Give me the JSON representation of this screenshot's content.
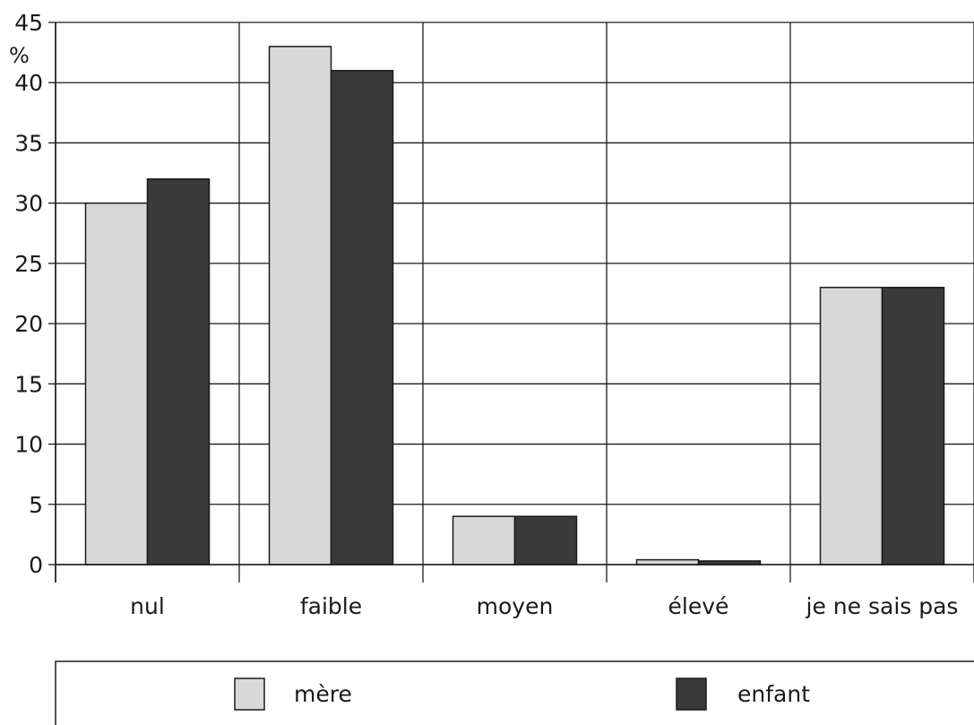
{
  "chart_data": {
    "type": "bar",
    "categories": [
      "nul",
      "faible",
      "moyen",
      "élevé",
      "je ne sais pas"
    ],
    "series": [
      {
        "name": "mère",
        "values": [
          30,
          43,
          4,
          0.4,
          23
        ],
        "color": "#d8d8d8"
      },
      {
        "name": "enfant",
        "values": [
          32,
          41,
          4,
          0.3,
          23
        ],
        "color": "#3a3a3a"
      }
    ],
    "ylabel": "%",
    "ylim": [
      0,
      45
    ],
    "yticks": [
      "0",
      "5",
      "10",
      "15",
      "20",
      "25",
      "30",
      "35",
      "40",
      "45"
    ],
    "grid": true,
    "legend_position": "bottom"
  }
}
